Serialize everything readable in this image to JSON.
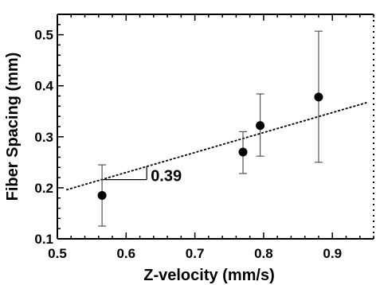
{
  "chart_data": {
    "type": "scatter",
    "xlabel": "Z-velocity (mm/s)",
    "ylabel": "Fiber Spacing (mm)",
    "xlim": [
      0.5,
      0.96
    ],
    "ylim": [
      0.1,
      0.54
    ],
    "x_ticks": [
      "0.5",
      "0.6",
      "0.7",
      "0.8",
      "0.9"
    ],
    "x_tick_values": [
      0.5,
      0.6,
      0.7,
      0.8,
      0.9
    ],
    "y_ticks": [
      "0.1",
      "0.2",
      "0.3",
      "0.4",
      "0.5"
    ],
    "y_tick_values": [
      0.1,
      0.2,
      0.3,
      0.4,
      0.5
    ],
    "series": [
      {
        "points": [
          {
            "x": 0.565,
            "y": 0.185,
            "err_low": 0.125,
            "err_high": 0.245
          },
          {
            "x": 0.77,
            "y": 0.27,
            "err_low": 0.228,
            "err_high": 0.31
          },
          {
            "x": 0.795,
            "y": 0.322,
            "err_low": 0.262,
            "err_high": 0.384
          },
          {
            "x": 0.88,
            "y": 0.378,
            "err_low": 0.25,
            "err_high": 0.507
          }
        ],
        "marker_color": "#000000"
      }
    ],
    "fit_line": {
      "x": [
        0.513,
        0.95
      ],
      "y": [
        0.196,
        0.367
      ],
      "style": "dotted"
    },
    "slope_annotation": {
      "text": "0.39",
      "x1": 0.565,
      "x2": 0.63,
      "y": 0.216
    },
    "grid": false,
    "legend": "none"
  }
}
